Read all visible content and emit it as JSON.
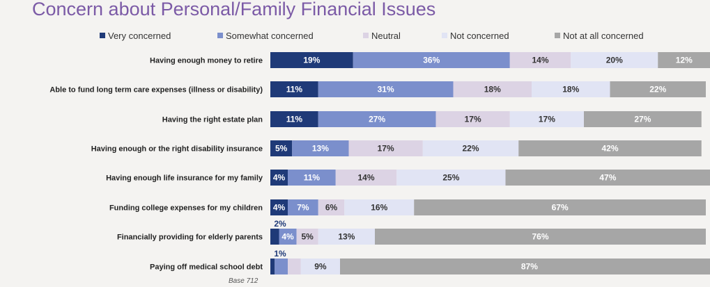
{
  "chart_data": {
    "type": "bar",
    "orientation": "horizontal",
    "stacked": true,
    "title": "Concern about Personal/Family Financial Issues",
    "legend_position": "top",
    "categories": [
      "Having enough money to retire",
      "Able to fund long term care expenses (illness or disability)",
      "Having the right estate plan",
      "Having enough or the right disability insurance",
      "Having enough life insurance for my family",
      "Funding college expenses for my children",
      "Financially providing for elderly parents",
      "Paying off medical school debt"
    ],
    "series": [
      {
        "name": "Very concerned",
        "color": "#1f3a78",
        "label_color": "#ffffff",
        "values": [
          19,
          11,
          11,
          5,
          4,
          4,
          2,
          1
        ]
      },
      {
        "name": "Somewhat concerned",
        "color": "#7b8fcc",
        "label_color": "#ffffff",
        "values": [
          36,
          31,
          27,
          13,
          11,
          7,
          4,
          3
        ]
      },
      {
        "name": "Neutral",
        "color": "#dcd3e4",
        "label_color": "#333333",
        "values": [
          14,
          18,
          17,
          17,
          14,
          6,
          5,
          3
        ]
      },
      {
        "name": "Not concerned",
        "color": "#e1e4f4",
        "label_color": "#333333",
        "values": [
          20,
          18,
          17,
          22,
          25,
          16,
          13,
          9
        ]
      },
      {
        "name": "Not at all concerned",
        "color": "#a6a6a6",
        "label_color": "#ffffff",
        "values": [
          12,
          22,
          27,
          42,
          47,
          67,
          76,
          87
        ]
      }
    ],
    "value_suffix": "%",
    "xlim": [
      0,
      100
    ],
    "grid": false
  },
  "base_label": "Base 712"
}
